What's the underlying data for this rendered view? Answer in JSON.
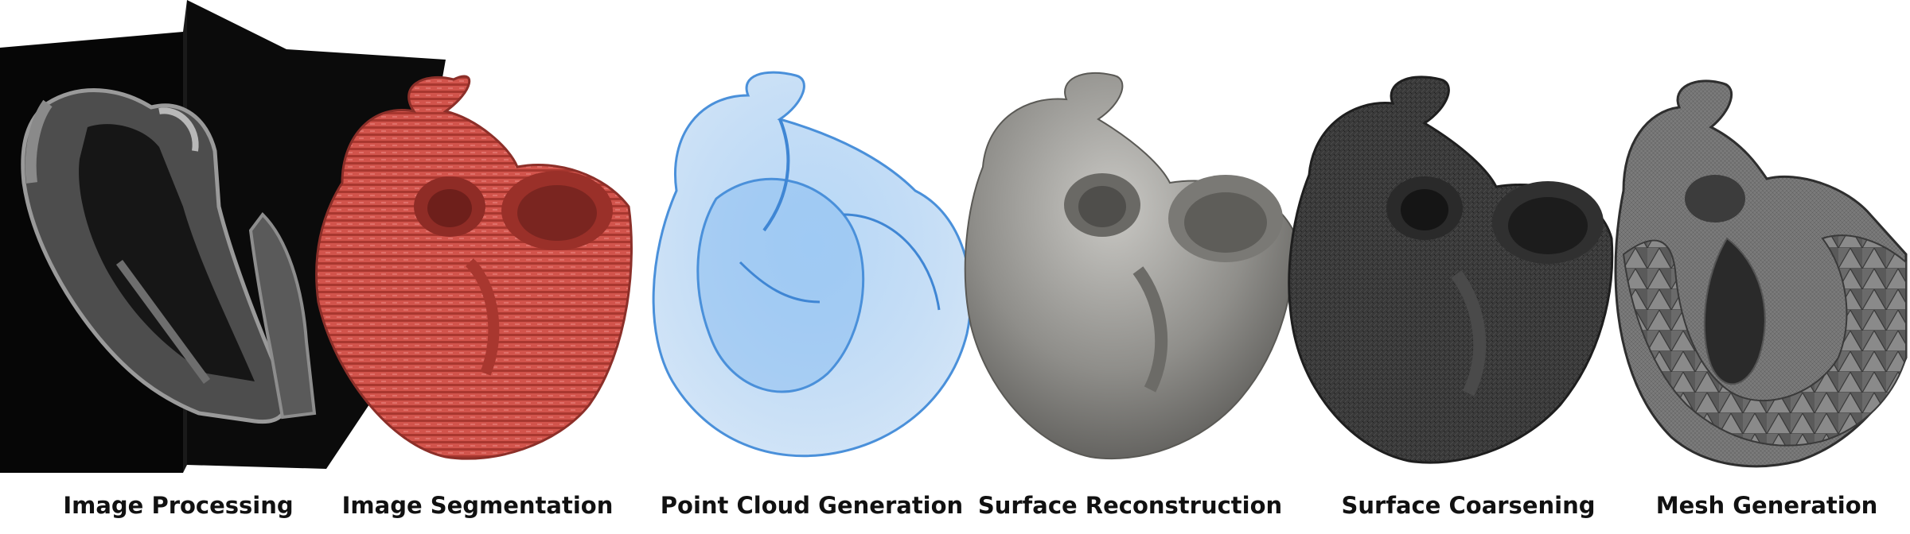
{
  "pipeline": {
    "stages": [
      {
        "label": "Image Processing"
      },
      {
        "label": "Image Segmentation"
      },
      {
        "label": "Point Cloud Generation"
      },
      {
        "label": "Surface Reconstruction"
      },
      {
        "label": "Surface Coarsening"
      },
      {
        "label": "Mesh Generation"
      }
    ]
  },
  "colors": {
    "background": "#ffffff",
    "label_text": "#111111",
    "ct_slice": "#0a0a0a",
    "segmentation_red": "#d2544c",
    "point_cloud_blue": "#5fa8ec",
    "surface_gray": "#8c8c8a",
    "coarse_surface_dark": "#4a4a4a",
    "mesh_gray": "#707070"
  },
  "icons": [
    "ct-slice-image",
    "segmented-heart",
    "point-cloud-heart",
    "smooth-surface-heart",
    "coarsened-mesh-heart",
    "volume-mesh-heart"
  ]
}
